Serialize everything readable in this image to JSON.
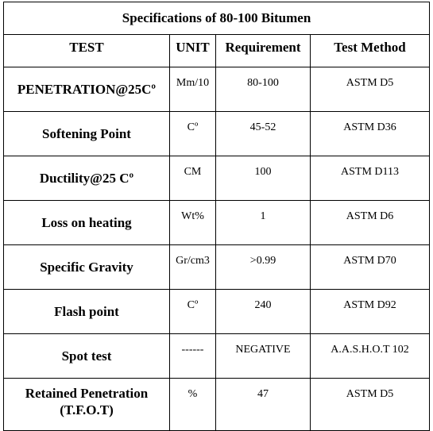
{
  "table": {
    "title": "Specifications of 80-100 Bitumen",
    "header": [
      "TEST",
      "UNIT",
      "Requirement",
      "Test Method"
    ],
    "rows": [
      [
        "PENETRATION@25Cº",
        "Mm/10",
        "80-100",
        "ASTM D5"
      ],
      [
        "Softening Point",
        "Cº",
        "45-52",
        "ASTM D36"
      ],
      [
        "Ductility@25 Cº",
        "CM",
        "100",
        "ASTM D113"
      ],
      [
        "Loss on heating",
        "Wt%",
        "1",
        "ASTM D6"
      ],
      [
        "Specific Gravity",
        "Gr/cm3",
        ">0.99",
        "ASTM D70"
      ],
      [
        "Flash point",
        "Cº",
        "240",
        "ASTM D92"
      ],
      [
        "Spot test",
        "------",
        "NEGATIVE",
        "A.A.S.H.O.T 102"
      ],
      [
        "Retained Penetration (T.F.O.T)",
        "%",
        "47",
        "ASTM D5"
      ]
    ]
  }
}
